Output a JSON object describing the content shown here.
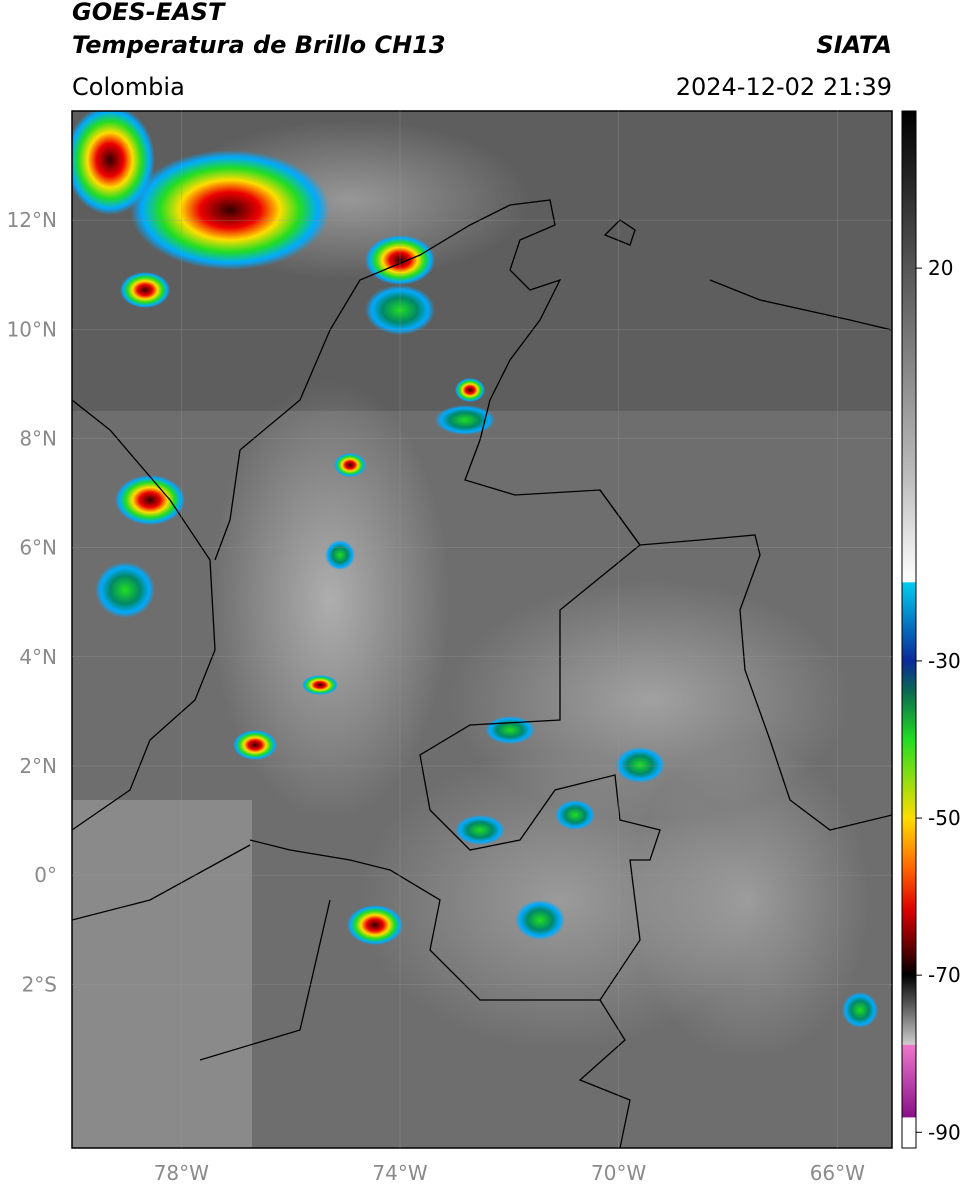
{
  "header": {
    "satellite": "GOES-EAST",
    "product": "Temperatura de Brillo CH13",
    "source": "SIATA",
    "region": "Colombia",
    "datetime": "2024-12-02 21:39"
  },
  "map": {
    "lon_range": [
      -80,
      -65
    ],
    "lat_range": [
      -5,
      14
    ],
    "lon_ticks": [
      {
        "value": -78,
        "label": "78°W"
      },
      {
        "value": -74,
        "label": "74°W"
      },
      {
        "value": -70,
        "label": "70°W"
      },
      {
        "value": -66,
        "label": "66°W"
      }
    ],
    "lat_ticks": [
      {
        "value": 12,
        "label": "12°N"
      },
      {
        "value": 10,
        "label": "10°N"
      },
      {
        "value": 8,
        "label": "8°N"
      },
      {
        "value": 6,
        "label": "6°N"
      },
      {
        "value": 4,
        "label": "4°N"
      },
      {
        "value": 2,
        "label": "2°N"
      },
      {
        "value": 0,
        "label": "0°"
      },
      {
        "value": -2,
        "label": "2°S"
      }
    ]
  },
  "colorbar": {
    "range": [
      -92,
      40
    ],
    "ticks": [
      20,
      -30,
      -50,
      -70,
      -90
    ]
  }
}
